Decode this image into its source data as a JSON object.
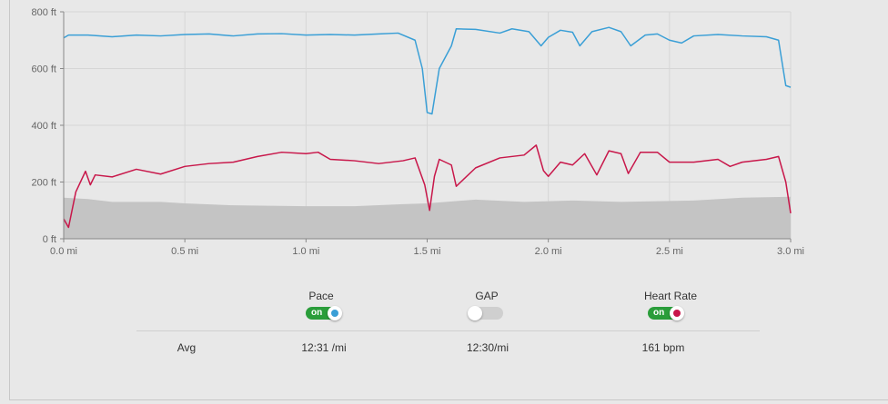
{
  "chart_data": {
    "type": "line",
    "xlabel": "",
    "ylabel": "",
    "xlim": [
      0,
      3.0
    ],
    "ylim": [
      0,
      800
    ],
    "x_ticks": [
      "0.0 mi",
      "0.5 mi",
      "1.0 mi",
      "1.5 mi",
      "2.0 mi",
      "2.5 mi",
      "3.0 mi"
    ],
    "y_ticks": [
      "0 ft",
      "200 ft",
      "400 ft",
      "600 ft",
      "800 ft"
    ],
    "grid": true,
    "colors": {
      "elevation": "#c4c4c4",
      "pace": "#3a9fd6",
      "heart_rate": "#c8174a"
    },
    "elevation": {
      "x": [
        0,
        0.1,
        0.2,
        0.4,
        0.5,
        0.7,
        1.0,
        1.2,
        1.4,
        1.5,
        1.7,
        1.9,
        2.1,
        2.3,
        2.6,
        2.8,
        3.0
      ],
      "y": [
        145,
        140,
        130,
        130,
        125,
        118,
        115,
        115,
        122,
        125,
        138,
        130,
        135,
        130,
        135,
        145,
        148
      ]
    },
    "pace": {
      "x": [
        0,
        0.02,
        0.1,
        0.2,
        0.3,
        0.4,
        0.5,
        0.6,
        0.7,
        0.8,
        0.9,
        1.0,
        1.1,
        1.2,
        1.3,
        1.38,
        1.45,
        1.48,
        1.5,
        1.52,
        1.55,
        1.6,
        1.62,
        1.7,
        1.8,
        1.85,
        1.92,
        1.97,
        2.0,
        2.05,
        2.1,
        2.13,
        2.18,
        2.25,
        2.3,
        2.34,
        2.4,
        2.45,
        2.5,
        2.55,
        2.6,
        2.7,
        2.8,
        2.9,
        2.95,
        2.98,
        3.0
      ],
      "y": [
        708,
        718,
        718,
        712,
        718,
        715,
        720,
        722,
        715,
        722,
        723,
        718,
        720,
        718,
        722,
        725,
        700,
        600,
        445,
        440,
        600,
        680,
        740,
        738,
        725,
        740,
        730,
        680,
        710,
        735,
        728,
        680,
        730,
        745,
        730,
        680,
        718,
        722,
        700,
        690,
        715,
        720,
        715,
        712,
        700,
        540,
        534
      ]
    },
    "heart_rate": {
      "x": [
        0,
        0.02,
        0.05,
        0.09,
        0.11,
        0.13,
        0.2,
        0.3,
        0.4,
        0.5,
        0.6,
        0.7,
        0.8,
        0.9,
        1.0,
        1.05,
        1.1,
        1.2,
        1.3,
        1.4,
        1.45,
        1.49,
        1.51,
        1.53,
        1.55,
        1.6,
        1.62,
        1.7,
        1.8,
        1.9,
        1.95,
        1.98,
        2.0,
        2.05,
        2.1,
        2.15,
        2.2,
        2.25,
        2.3,
        2.33,
        2.38,
        2.45,
        2.5,
        2.6,
        2.7,
        2.75,
        2.8,
        2.9,
        2.95,
        2.98,
        3.0
      ],
      "y": [
        70,
        40,
        165,
        238,
        190,
        225,
        218,
        245,
        228,
        255,
        265,
        270,
        290,
        305,
        300,
        305,
        280,
        275,
        265,
        275,
        285,
        190,
        100,
        220,
        280,
        260,
        185,
        250,
        285,
        295,
        330,
        240,
        220,
        270,
        260,
        300,
        225,
        310,
        300,
        230,
        305,
        305,
        270,
        270,
        280,
        255,
        270,
        280,
        290,
        200,
        90
      ]
    }
  },
  "toggles": [
    {
      "label": "Pace",
      "state": "on",
      "color": "#3a9fd6"
    },
    {
      "label": "GAP",
      "state": "off"
    },
    {
      "label": "Heart Rate",
      "state": "on",
      "color": "#c8174a"
    }
  ],
  "stats": {
    "label": "Avg",
    "pace": "12:31 /mi",
    "gap": "12:30/mi",
    "heart_rate": "161 bpm"
  }
}
